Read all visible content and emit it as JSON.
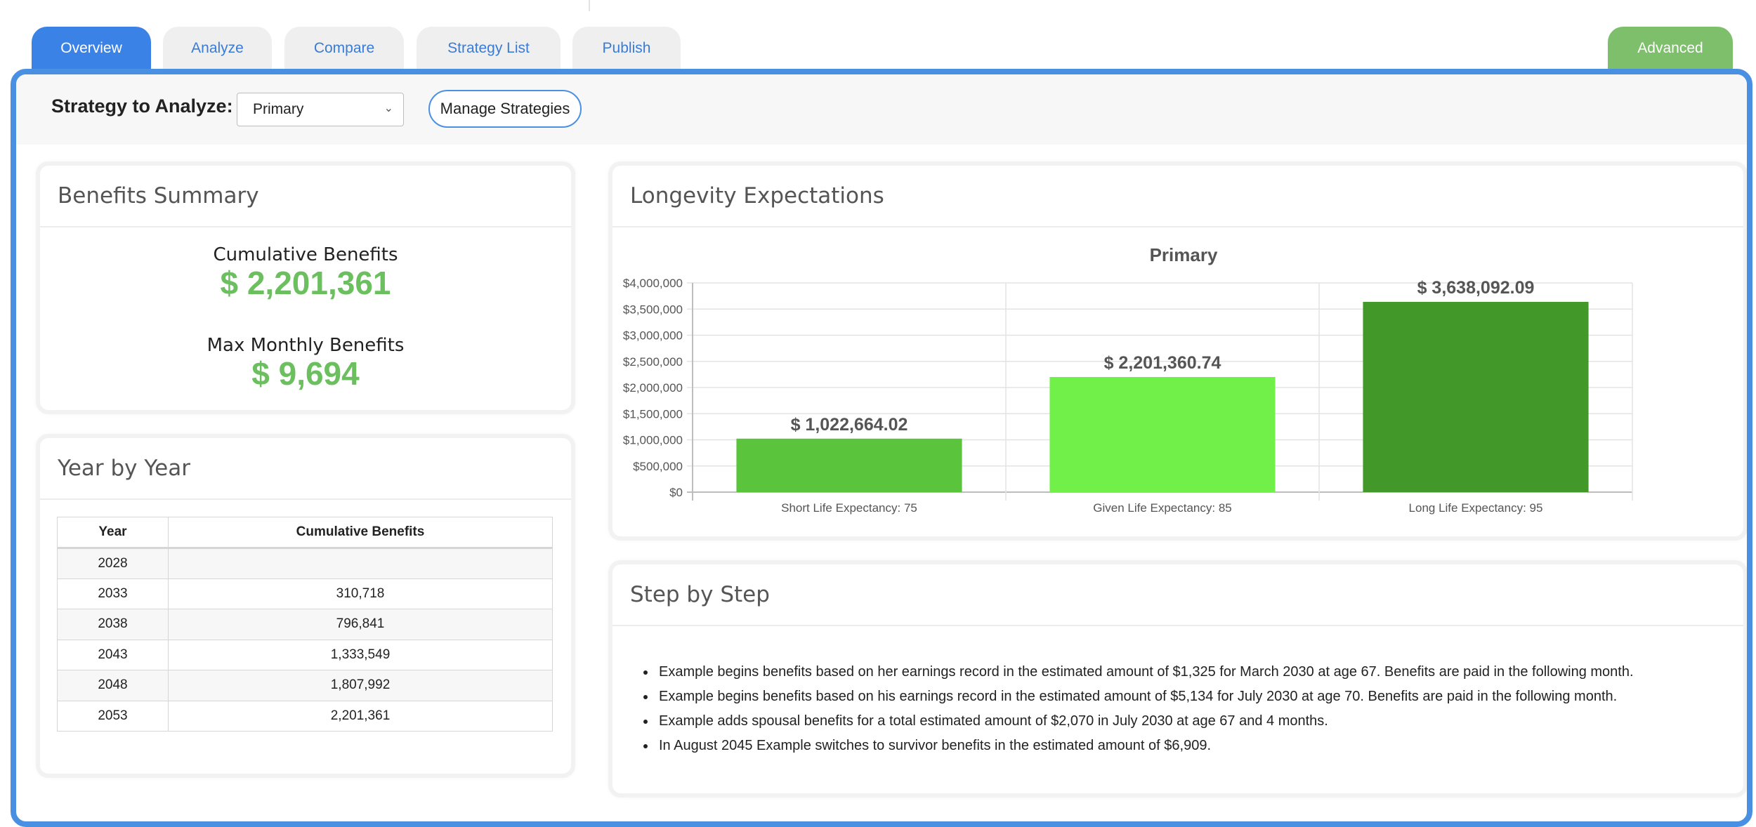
{
  "tabs": [
    "Overview",
    "Analyze",
    "Compare",
    "Strategy List",
    "Publish"
  ],
  "advanced_tab": "Advanced",
  "strategy": {
    "label": "Strategy to Analyze:",
    "selected": "Primary",
    "manage_button": "Manage Strategies"
  },
  "benefits_summary": {
    "title": "Benefits Summary",
    "cumulative_label": "Cumulative Benefits",
    "cumulative_value": "$ 2,201,361",
    "max_monthly_label": "Max Monthly Benefits",
    "max_monthly_value": "$ 9,694"
  },
  "year_by_year": {
    "title": "Year by Year",
    "columns": [
      "Year",
      "Cumulative Benefits"
    ],
    "rows": [
      [
        "2028",
        ""
      ],
      [
        "2033",
        "310,718"
      ],
      [
        "2038",
        "796,841"
      ],
      [
        "2043",
        "1,333,549"
      ],
      [
        "2048",
        "1,807,992"
      ],
      [
        "2053",
        "2,201,361"
      ]
    ]
  },
  "longevity": {
    "title": "Longevity Expectations"
  },
  "chart_data": {
    "type": "bar",
    "title": "Primary",
    "categories": [
      "Short Life Expectancy: 75",
      "Given Life Expectancy: 85",
      "Long Life Expectancy: 95"
    ],
    "values": [
      1022664.02,
      2201360.74,
      3638092.09
    ],
    "data_labels": [
      "$ 1,022,664.02",
      "$ 2,201,360.74",
      "$ 3,638,092.09"
    ],
    "bar_colors": [
      "#5ac43c",
      "#72f04a",
      "#43982a"
    ],
    "ylim": [
      0,
      4000000
    ],
    "yticks": [
      0,
      500000,
      1000000,
      1500000,
      2000000,
      2500000,
      3000000,
      3500000,
      4000000
    ],
    "ytick_labels": [
      "$0",
      "$500,000",
      "$1,000,000",
      "$1,500,000",
      "$2,000,000",
      "$2,500,000",
      "$3,000,000",
      "$3,500,000",
      "$4,000,000"
    ],
    "grid": true,
    "xlabel": "",
    "ylabel": ""
  },
  "step_by_step": {
    "title": "Step by Step",
    "items": [
      "Example begins benefits based on her earnings record in the estimated amount of $1,325 for March 2030 at age 67. Benefits are paid in the following month.",
      "Example begins benefits based on his earnings record in the estimated amount of $5,134 for July 2030 at age 70. Benefits are paid in the following month.",
      "Example adds spousal benefits for a total estimated amount of $2,070 in July 2030 at age 67 and 4 months.",
      "In August 2045 Example switches to survivor benefits in the estimated amount of $6,909."
    ]
  },
  "colors": {
    "accent": "#4a90e2",
    "active_tab": "#3b82e6",
    "advanced_tab": "#7dbf6a",
    "summary_value": "#6cbf5e"
  }
}
